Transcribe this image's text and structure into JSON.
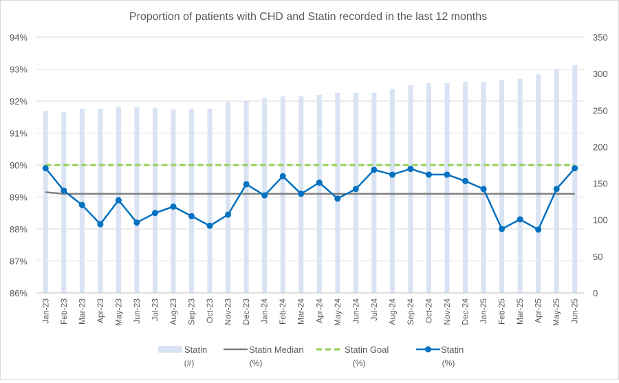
{
  "chart_data": {
    "type": "bar+line",
    "title": "Proportion of patients with CHD and Statin recorded in the last 12 months",
    "categories": [
      "Jan-23",
      "Feb-23",
      "Mar-23",
      "Apr-23",
      "May-23",
      "Jun-23",
      "Jul-23",
      "Aug-23",
      "Sep-23",
      "Oct-23",
      "Nov-23",
      "Dec-23",
      "Jan-24",
      "Feb-24",
      "Mar-24",
      "Apr-24",
      "May-24",
      "Jun-24",
      "Jul-24",
      "Aug-24",
      "Sep-24",
      "Oct-24",
      "Nov-24",
      "Dec-24",
      "Jan-25",
      "Feb-25",
      "Mar-25",
      "Apr-25",
      "May-25",
      "Jun-25"
    ],
    "y_left": {
      "min": 86,
      "max": 94,
      "ticks": [
        "86%",
        "87%",
        "88%",
        "89%",
        "90%",
        "91%",
        "92%",
        "93%",
        "94%"
      ]
    },
    "y_right": {
      "min": 0,
      "max": 350,
      "ticks": [
        "0",
        "50",
        "100",
        "150",
        "200",
        "250",
        "300",
        "350"
      ]
    },
    "grid": true,
    "legend_position": "bottom",
    "series": [
      {
        "name": "Statin",
        "unit": "(#)",
        "type": "bar",
        "axis": "right",
        "color": "#dae3f3",
        "values": [
          249,
          248,
          252,
          252,
          255,
          254,
          253,
          251,
          252,
          252,
          261,
          262,
          267,
          269,
          269,
          271,
          274,
          274,
          274,
          279,
          284,
          287,
          287,
          289,
          289,
          291,
          293,
          299,
          305,
          312
        ]
      },
      {
        "name": "Statin Median",
        "unit": "(%)",
        "type": "line",
        "axis": "left",
        "color": "#7f7f7f",
        "values": [
          89.15,
          89.1,
          89.1,
          89.1,
          89.1,
          89.1,
          89.1,
          89.1,
          89.1,
          89.1,
          89.1,
          89.1,
          89.1,
          89.1,
          89.1,
          89.1,
          89.1,
          89.1,
          89.1,
          89.1,
          89.1,
          89.1,
          89.1,
          89.1,
          89.1,
          89.1,
          89.1,
          89.1,
          89.1,
          89.1
        ]
      },
      {
        "name": "Statin Goal",
        "unit": "(%)",
        "type": "dashed-line",
        "axis": "left",
        "color": "#92d050",
        "values": [
          90,
          90,
          90,
          90,
          90,
          90,
          90,
          90,
          90,
          90,
          90,
          90,
          90,
          90,
          90,
          90,
          90,
          90,
          90,
          90,
          90,
          90,
          90,
          90,
          90,
          90,
          90,
          90,
          90,
          90
        ]
      },
      {
        "name": "Statin",
        "unit": "(%)",
        "type": "line-marker",
        "axis": "left",
        "color": "#0070c0",
        "values": [
          89.9,
          89.2,
          88.75,
          88.15,
          88.9,
          88.2,
          88.5,
          88.7,
          88.4,
          88.1,
          88.45,
          89.4,
          89.05,
          89.65,
          89.1,
          89.45,
          88.95,
          89.25,
          89.85,
          89.7,
          89.88,
          89.7,
          89.7,
          89.5,
          89.25,
          88.0,
          88.3,
          87.98,
          89.25,
          89.9
        ]
      }
    ]
  }
}
